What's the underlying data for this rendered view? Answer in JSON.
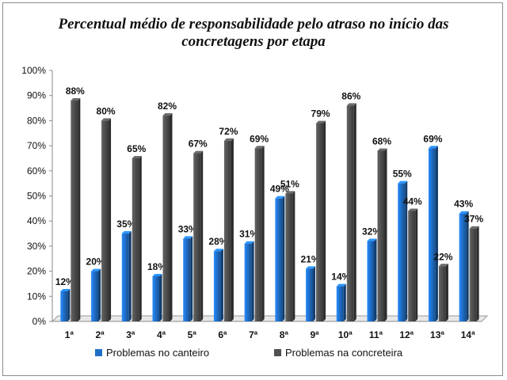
{
  "chart_data": {
    "type": "bar",
    "title": "Percentual médio de responsabilidade pelo atraso no início das concretagens por etapa",
    "title_lines": [
      "Percentual médio de responsabilidade pelo atraso no início das",
      "concretagens por etapa"
    ],
    "categories": [
      "1ª",
      "2ª",
      "3ª",
      "4ª",
      "5ª",
      "6ª",
      "7ª",
      "8ª",
      "9ª",
      "10ª",
      "11ª",
      "12ª",
      "13ª",
      "14ª"
    ],
    "series": [
      {
        "name": "Problemas no canteiro",
        "color": "#1f6fc9",
        "values": [
          12,
          20,
          35,
          18,
          33,
          28,
          31,
          49,
          21,
          14,
          32,
          55,
          69,
          43
        ],
        "labels": [
          "12%",
          "20%",
          "35%",
          "18%",
          "33%",
          "28%",
          "31%",
          "49%",
          "21%",
          "14%",
          "32%",
          "55%",
          "69%",
          "43%"
        ]
      },
      {
        "name": "Problemas na concreteira",
        "color": "#505050",
        "values": [
          88,
          80,
          65,
          82,
          67,
          72,
          69,
          51,
          79,
          86,
          68,
          44,
          22,
          37
        ],
        "labels": [
          "88%",
          "80%",
          "65%",
          "82%",
          "67%",
          "72%",
          "69%",
          "51%",
          "79%",
          "86%",
          "68%",
          "44%",
          "22%",
          "37%"
        ]
      }
    ],
    "ylim": [
      0,
      100
    ],
    "yticks": [
      0,
      10,
      20,
      30,
      40,
      50,
      60,
      70,
      80,
      90,
      100
    ],
    "ytick_labels": [
      "0%",
      "10%",
      "20%",
      "30%",
      "40%",
      "50%",
      "60%",
      "70%",
      "80%",
      "90%",
      "100%"
    ],
    "xlabel": "",
    "ylabel": "",
    "grid": false,
    "legend_position": "bottom"
  }
}
